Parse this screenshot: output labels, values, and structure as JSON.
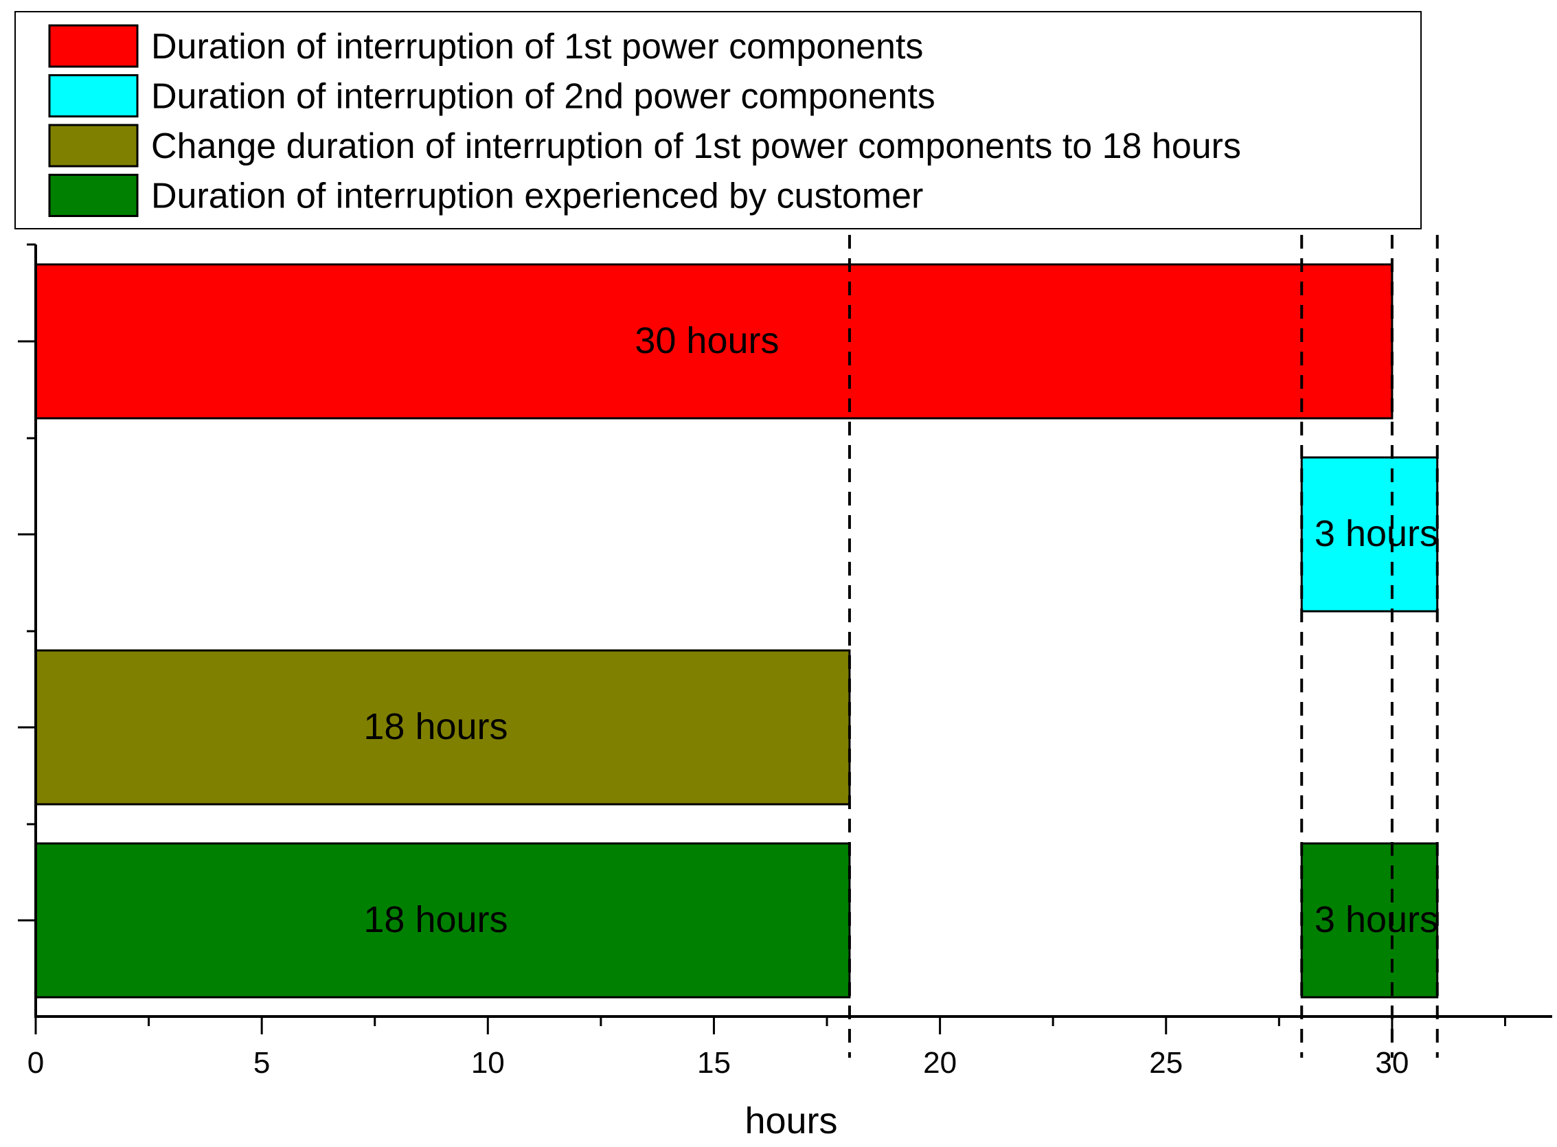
{
  "chart_data": {
    "type": "bar",
    "orientation": "horizontal",
    "xlabel": "hours",
    "xlim": [
      0,
      33.5
    ],
    "xticks": [
      0,
      5,
      10,
      15,
      20,
      25,
      30
    ],
    "xtick_labels": [
      "0",
      "5",
      "10",
      "15",
      "20",
      "25",
      "30"
    ],
    "legend_position": "top",
    "series": [
      {
        "name": "Duration of interruption of 1st power components",
        "color": "#FF0000"
      },
      {
        "name": "Duration of interruption of 2nd power components",
        "color": "#00FFFF"
      },
      {
        "name": "Change duration of interruption of 1st power components to 18 hours",
        "color": "#808000"
      },
      {
        "name": "Duration of interruption experienced by customer",
        "color": "#008000"
      }
    ],
    "bars": [
      {
        "row": 0,
        "series": 0,
        "start": 0,
        "end": 30,
        "label": "30 hours"
      },
      {
        "row": 1,
        "series": 1,
        "start": 28,
        "end": 31,
        "label": "3 hours"
      },
      {
        "row": 2,
        "series": 2,
        "start": 0,
        "end": 18,
        "label": "18 hours"
      },
      {
        "row": 3,
        "series": 3,
        "start": 0,
        "end": 18,
        "label": "18 hours"
      },
      {
        "row": 3,
        "series": 3,
        "start": 28,
        "end": 31,
        "label": "3 hours"
      }
    ],
    "reference_lines": [
      18,
      28,
      30,
      31
    ]
  }
}
